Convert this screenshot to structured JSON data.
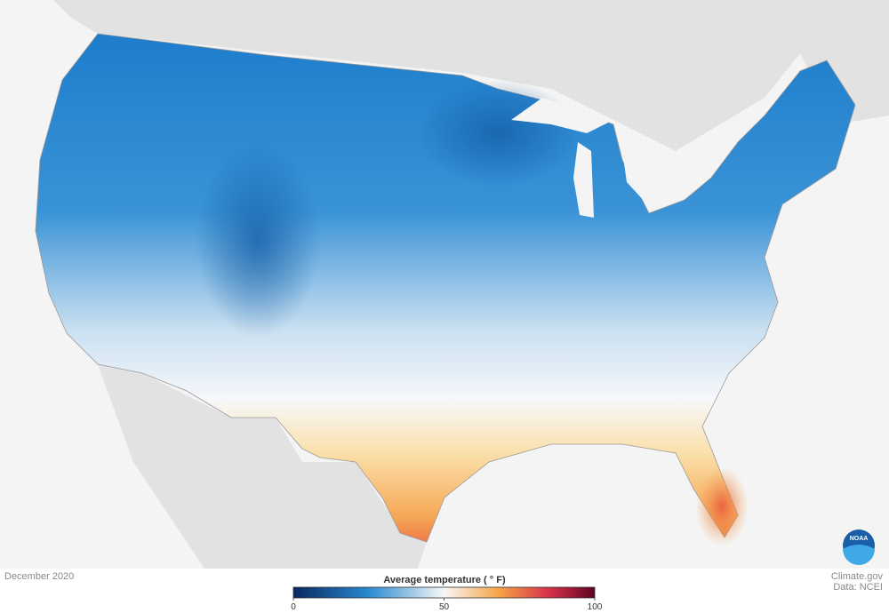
{
  "map": {
    "date": "December 2020",
    "logo": "NOAA"
  },
  "legend": {
    "title": "Average temperature ( ° F)",
    "range": [
      0,
      100
    ],
    "ticks": [
      0,
      50,
      100
    ]
  },
  "credits": {
    "site": "Climate.gov",
    "source": "Data: NCEI"
  }
}
